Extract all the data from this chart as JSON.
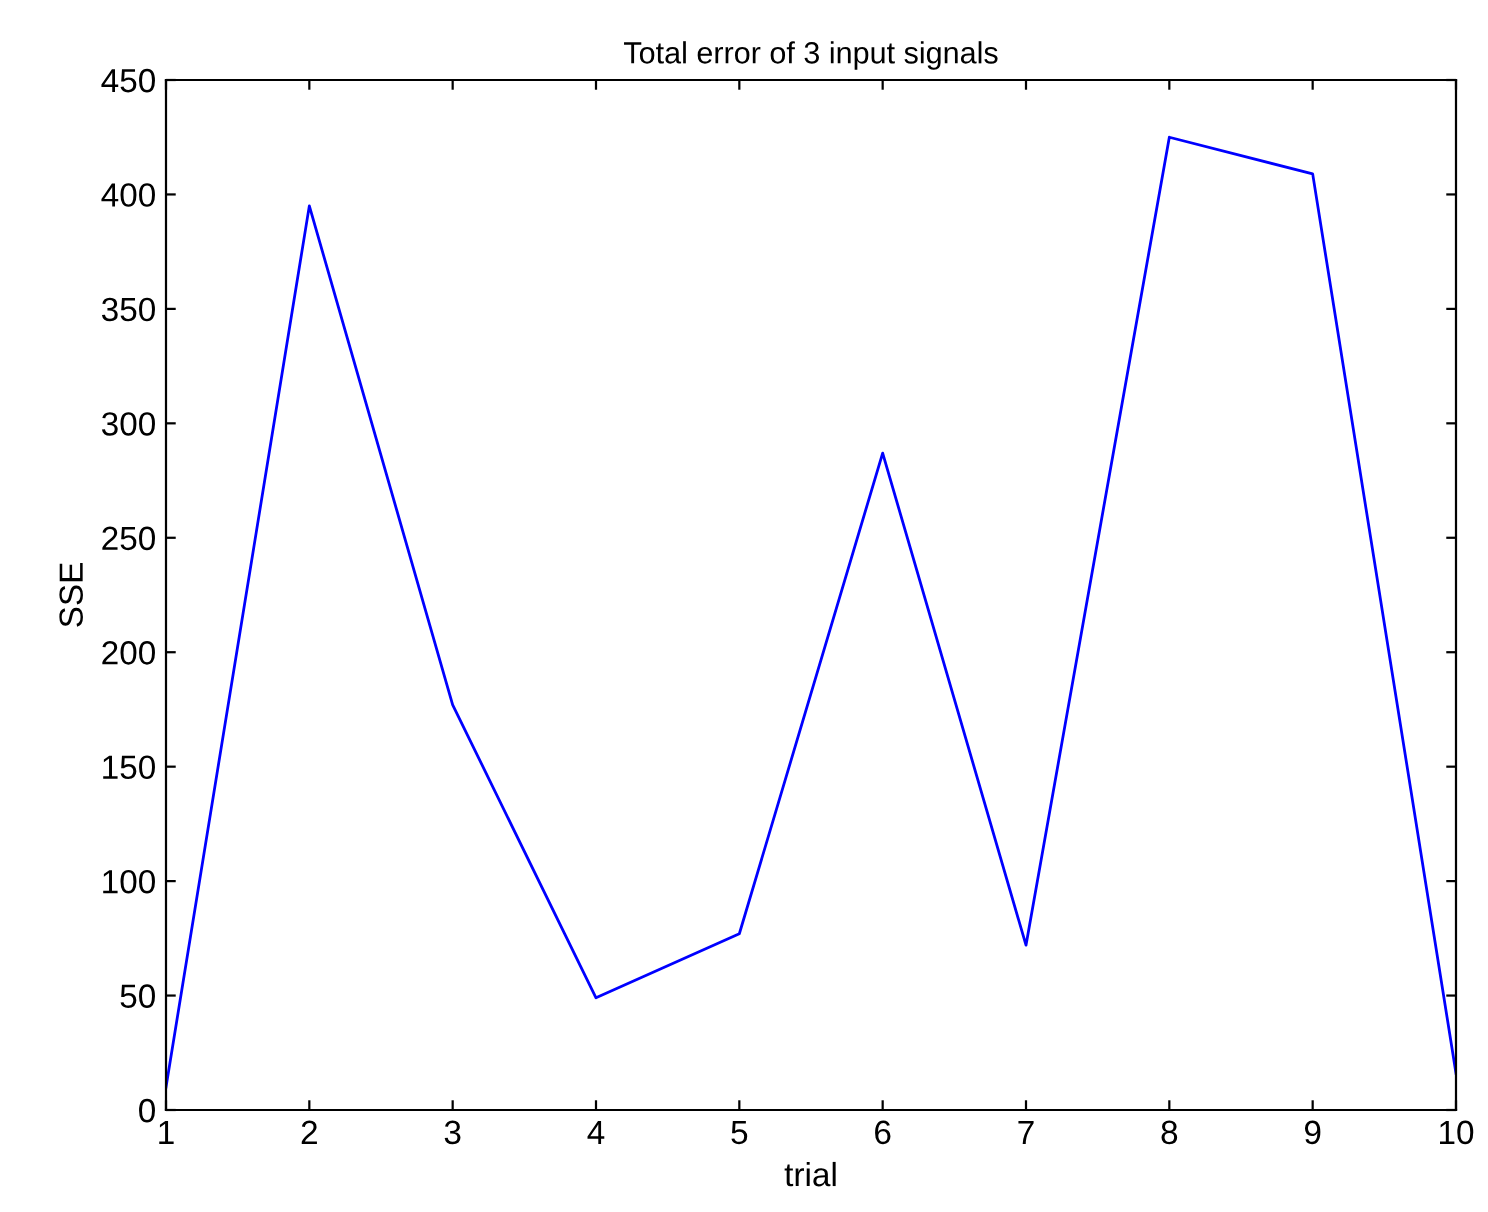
{
  "chart_data": {
    "type": "line",
    "title": "Total error of 3 input signals",
    "xlabel": "trial",
    "ylabel": "SSE",
    "x": [
      1,
      2,
      3,
      4,
      5,
      6,
      7,
      8,
      9,
      10
    ],
    "series": [
      {
        "color": "#0000ff",
        "values": [
          10,
          395,
          177,
          49,
          77,
          287,
          72,
          425,
          409,
          16
        ]
      }
    ],
    "xlim": [
      1,
      10
    ],
    "xticks": [
      1,
      2,
      3,
      4,
      5,
      6,
      7,
      8,
      9,
      10
    ],
    "ylim": [
      0,
      450
    ],
    "yticks": [
      0,
      50,
      100,
      150,
      200,
      250,
      300,
      350,
      400,
      450
    ],
    "grid": false,
    "legend": false,
    "marker": "none",
    "line_style": "solid"
  }
}
